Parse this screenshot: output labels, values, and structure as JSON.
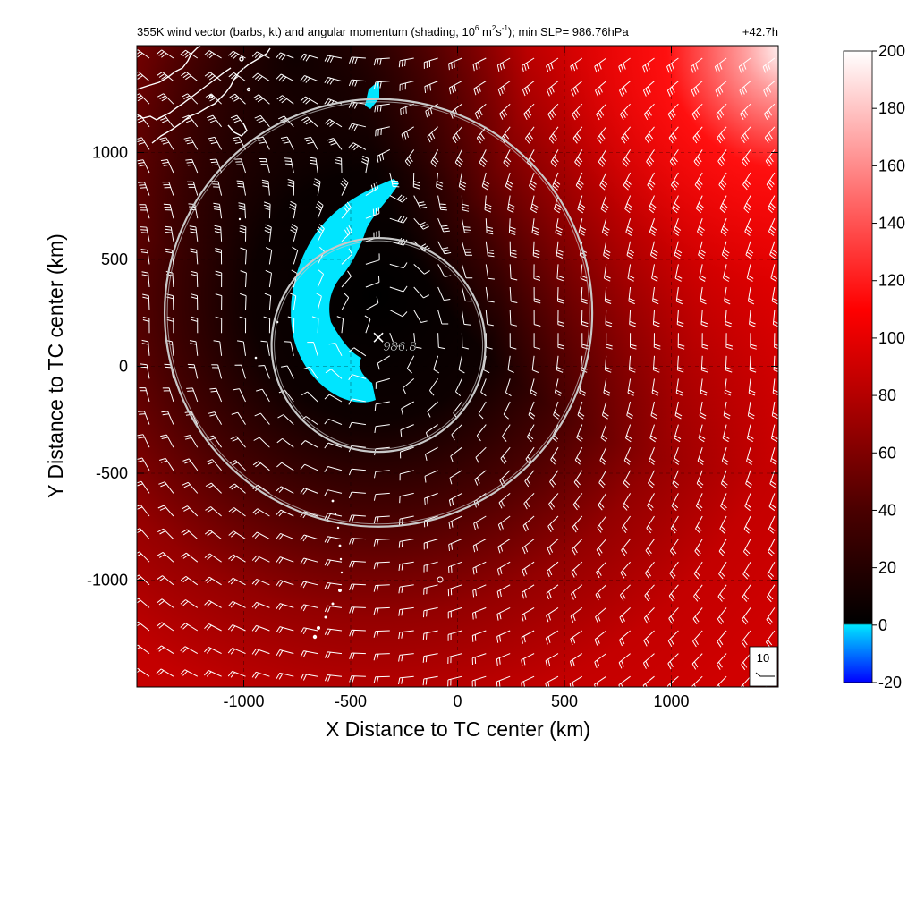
{
  "chart_data": {
    "type": "heatmap",
    "title": "355K wind vector (barbs, kt) and angular momentum (shading, 10",
    "title_exp1": "6",
    "title_mid1": " m",
    "title_exp2": "2",
    "title_mid2": "s",
    "title_exp3": "-1",
    "title_rest": "); min SLP= 986.76hPa",
    "forecast_hour": "+42.7h",
    "xlabel": "X Distance to TC center (km)",
    "ylabel": "Y Distance to TC center (km)",
    "xlim": [
      -1500,
      1500
    ],
    "ylim": [
      -1500,
      1500
    ],
    "x_ticks": [
      -1000,
      -500,
      0,
      500,
      1000
    ],
    "x_tick_labels": [
      "-1000",
      "-500",
      "0",
      "500",
      "1000"
    ],
    "y_ticks": [
      -1000,
      -500,
      0,
      500,
      1000
    ],
    "y_tick_labels": [
      "-1000",
      "-500",
      "0",
      "500",
      "1000"
    ],
    "grid": true,
    "colorbar": {
      "min": -20,
      "max": 200,
      "ticks": [
        200,
        180,
        160,
        140,
        120,
        100,
        80,
        60,
        40,
        20,
        0,
        -20
      ],
      "tick_labels": [
        "200",
        "180",
        "160",
        "140",
        "120",
        "100",
        "80",
        "60",
        "40",
        "20",
        "0",
        "-20"
      ],
      "stops": [
        {
          "value": -20,
          "color": "#0000ff"
        },
        {
          "value": 0,
          "color": "#00e5ff"
        },
        {
          "value": 0.5,
          "color": "#000000"
        },
        {
          "value": 40,
          "color": "#4a0000"
        },
        {
          "value": 80,
          "color": "#b40000"
        },
        {
          "value": 110,
          "color": "#ff0000"
        },
        {
          "value": 150,
          "color": "#ff6e6e"
        },
        {
          "value": 200,
          "color": "#ffffff"
        }
      ]
    },
    "center_marker": {
      "x": -370,
      "y": 135,
      "label": "986.8"
    },
    "rings": [
      {
        "cx": -370,
        "cy": 100,
        "r": 500
      },
      {
        "cx": -370,
        "cy": 250,
        "r": 1000
      }
    ],
    "barb_reference": {
      "label": "10"
    },
    "colors": {
      "negative_region": "#00e5ff",
      "ring": "#c8c8c8",
      "barb": "#ffffff",
      "coastline": "#ffffff"
    }
  }
}
